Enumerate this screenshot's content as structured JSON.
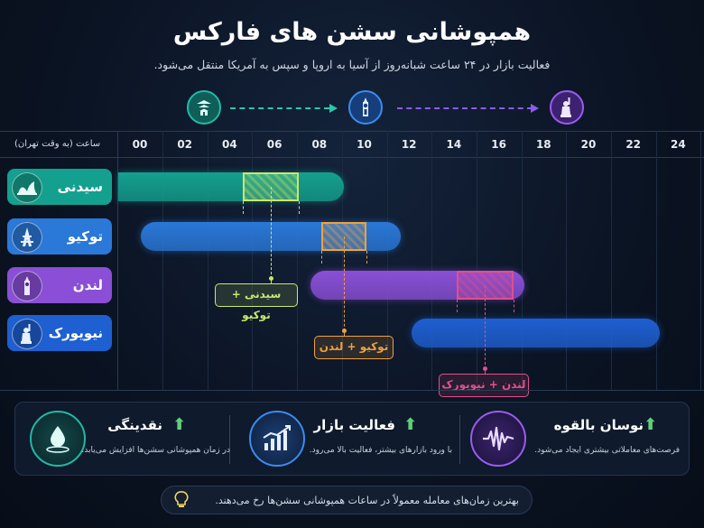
{
  "title": "همپوشانی سشن های فارکس",
  "subtitle": "فعالیت بازار در ۲۴ ساعت شبانه‌روز از آسیا به اروپا و سپس به آمریکا منتقل می‌شود.",
  "header_icons": [
    "pagoda-icon",
    "big-ben-icon",
    "statue-of-liberty-icon"
  ],
  "time_axis": {
    "label": "ساعت (به وقت تهران)",
    "ticks": [
      "00",
      "02",
      "04",
      "06",
      "08",
      "10",
      "12",
      "14",
      "16",
      "18",
      "20",
      "22",
      "24"
    ]
  },
  "sessions": [
    {
      "name": "سیدنی",
      "icon": "sydney-opera-house-icon",
      "color": "#14a08e",
      "start": 0,
      "end": 10
    },
    {
      "name": "توکیو",
      "icon": "tokyo-tower-icon",
      "color": "#2a78d8",
      "start": 1,
      "end": 12.5
    },
    {
      "name": "لندن",
      "icon": "big-ben-icon",
      "color": "#8a4fd6",
      "start": 8.5,
      "end": 18
    },
    {
      "name": "نیویورک",
      "icon": "statue-of-liberty-icon",
      "color": "#1e5fd1",
      "start": 13,
      "end": 24
    }
  ],
  "overlaps": [
    {
      "label": "سیدنی + توکیو",
      "start": 5.5,
      "end": 8,
      "color": "#c9e86a"
    },
    {
      "label": "توکیو + لندن",
      "start": 9,
      "end": 11,
      "color": "#f0a23a"
    },
    {
      "label": "لندن + نیویورک",
      "start": 15,
      "end": 17.5,
      "color": "#e24f8a"
    }
  ],
  "features": [
    {
      "title": "نوسان بالقوه",
      "desc": "فرصت‌های معاملاتی بیشتری ایجاد می‌شود.",
      "icon": "waveform-icon",
      "color": "#9a5cf0"
    },
    {
      "title": "فعالیت بازار",
      "desc": "با ورود بازارهای بیشتر، فعالیت بالا می‌رود.",
      "icon": "bar-chart-icon",
      "color": "#3a8cf0"
    },
    {
      "title": "نقدینگی",
      "desc": "در زمان همپوشانی سشن‌ها افزایش می‌یابد.",
      "icon": "water-drop-icon",
      "color": "#22b8a8"
    }
  ],
  "tip": "بهترین زمان‌های معامله معمولاً در ساعات همپوشانی سشن‌ها رخ می‌دهند.",
  "tip_icon": "lightbulb-icon"
}
